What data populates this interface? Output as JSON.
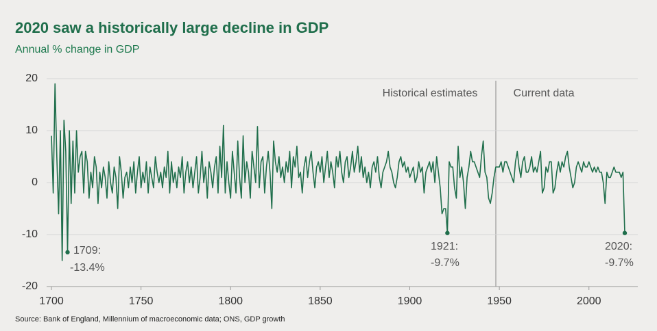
{
  "chart_data": {
    "type": "line",
    "title": "2020 saw a historically large decline in GDP",
    "subtitle": "Annual % change in GDP",
    "source": "Source: Bank of England, Millennium of macroeconomic data; ONS, GDP growth",
    "annotations": [
      "Historical estimates",
      "Current data",
      "1709:",
      "-13.4%",
      "1921:",
      "-9.7%",
      "2020:",
      "-9.7%"
    ],
    "xlim": [
      1700,
      2020
    ],
    "xticks": [
      1700,
      1750,
      1800,
      1850,
      1900,
      1950,
      2000
    ],
    "ylim": [
      -20,
      20
    ],
    "yticks": [
      -20,
      -10,
      0,
      10,
      20
    ],
    "grid": true,
    "x": [
      1700,
      1701,
      1702,
      1703,
      1704,
      1705,
      1706,
      1707,
      1708,
      1709,
      1710,
      1711,
      1712,
      1713,
      1714,
      1715,
      1716,
      1717,
      1718,
      1719,
      1720,
      1721,
      1722,
      1723,
      1724,
      1725,
      1726,
      1727,
      1728,
      1729,
      1730,
      1731,
      1732,
      1733,
      1734,
      1735,
      1736,
      1737,
      1738,
      1739,
      1740,
      1741,
      1742,
      1743,
      1744,
      1745,
      1746,
      1747,
      1748,
      1749,
      1750,
      1751,
      1752,
      1753,
      1754,
      1755,
      1756,
      1757,
      1758,
      1759,
      1760,
      1761,
      1762,
      1763,
      1764,
      1765,
      1766,
      1767,
      1768,
      1769,
      1770,
      1771,
      1772,
      1773,
      1774,
      1775,
      1776,
      1777,
      1778,
      1779,
      1780,
      1781,
      1782,
      1783,
      1784,
      1785,
      1786,
      1787,
      1788,
      1789,
      1790,
      1791,
      1792,
      1793,
      1794,
      1795,
      1796,
      1797,
      1798,
      1799,
      1800,
      1801,
      1802,
      1803,
      1804,
      1805,
      1806,
      1807,
      1808,
      1809,
      1810,
      1811,
      1812,
      1813,
      1814,
      1815,
      1816,
      1817,
      1818,
      1819,
      1820,
      1821,
      1822,
      1823,
      1824,
      1825,
      1826,
      1827,
      1828,
      1829,
      1830,
      1831,
      1832,
      1833,
      1834,
      1835,
      1836,
      1837,
      1838,
      1839,
      1840,
      1841,
      1842,
      1843,
      1844,
      1845,
      1846,
      1847,
      1848,
      1849,
      1850,
      1851,
      1852,
      1853,
      1854,
      1855,
      1856,
      1857,
      1858,
      1859,
      1860,
      1861,
      1862,
      1863,
      1864,
      1865,
      1866,
      1867,
      1868,
      1869,
      1870,
      1871,
      1872,
      1873,
      1874,
      1875,
      1876,
      1877,
      1878,
      1879,
      1880,
      1881,
      1882,
      1883,
      1884,
      1885,
      1886,
      1887,
      1888,
      1889,
      1890,
      1891,
      1892,
      1893,
      1894,
      1895,
      1896,
      1897,
      1898,
      1899,
      1900,
      1901,
      1902,
      1903,
      1904,
      1905,
      1906,
      1907,
      1908,
      1909,
      1910,
      1911,
      1912,
      1913,
      1914,
      1915,
      1916,
      1917,
      1918,
      1919,
      1920,
      1921,
      1922,
      1923,
      1924,
      1925,
      1926,
      1927,
      1928,
      1929,
      1930,
      1931,
      1932,
      1933,
      1934,
      1935,
      1936,
      1937,
      1938,
      1939,
      1940,
      1941,
      1942,
      1943,
      1944,
      1945,
      1946,
      1947,
      1948,
      1949,
      1950,
      1951,
      1952,
      1953,
      1954,
      1955,
      1956,
      1957,
      1958,
      1959,
      1960,
      1961,
      1962,
      1963,
      1964,
      1965,
      1966,
      1967,
      1968,
      1969,
      1970,
      1971,
      1972,
      1973,
      1974,
      1975,
      1976,
      1977,
      1978,
      1979,
      1980,
      1981,
      1982,
      1983,
      1984,
      1985,
      1986,
      1987,
      1988,
      1989,
      1990,
      1991,
      1992,
      1993,
      1994,
      1995,
      1996,
      1997,
      1998,
      1999,
      2000,
      2001,
      2002,
      2003,
      2004,
      2005,
      2006,
      2007,
      2008,
      2009,
      2010,
      2011,
      2012,
      2013,
      2014,
      2015,
      2016,
      2017,
      2018,
      2019,
      2020
    ],
    "series": [
      {
        "name": "Annual % change in GDP",
        "color": "#1f6e4b",
        "values": [
          9,
          -2,
          19,
          5,
          -6,
          10,
          -15,
          12,
          6,
          -13.4,
          10,
          -4,
          8,
          -2,
          10,
          2,
          5,
          6,
          -2,
          6,
          4,
          -3,
          2,
          -1,
          5,
          3,
          -4,
          2,
          -1,
          3,
          1,
          -3,
          4,
          0,
          -2,
          3,
          1,
          -5,
          5,
          2,
          -3,
          1,
          2,
          -1,
          3,
          0,
          4,
          -2,
          2,
          5,
          -1,
          2,
          0,
          4,
          -2,
          3,
          1,
          -1,
          5,
          2,
          0,
          2,
          -1,
          3,
          1,
          6,
          -2,
          4,
          0,
          2,
          -1,
          3,
          1,
          5,
          -2,
          2,
          4,
          0,
          3,
          -1,
          2,
          5,
          -2,
          1,
          6,
          0,
          3,
          -3,
          4,
          2,
          -1,
          3,
          5,
          -2,
          7,
          1,
          11,
          -2,
          4,
          0,
          -3,
          6,
          2,
          -2,
          8,
          1,
          -3,
          9,
          0,
          4,
          2,
          -3,
          6,
          3,
          0,
          10.8,
          -1,
          4,
          5,
          -2,
          3,
          6,
          2,
          -5,
          8,
          4,
          2,
          5,
          1,
          3,
          0,
          4,
          2,
          6,
          -1,
          5,
          3,
          7,
          1,
          2,
          -2,
          3,
          5,
          1,
          4,
          6,
          2,
          -1,
          3,
          4,
          2,
          5,
          0,
          3,
          6,
          1,
          4,
          2,
          -1,
          5,
          3,
          6,
          2,
          0,
          4,
          5,
          1,
          3,
          6,
          2,
          4,
          7,
          2,
          5,
          1,
          3,
          0,
          2,
          -1,
          3,
          4,
          2,
          5,
          1,
          -1,
          2,
          3,
          4,
          6,
          3,
          2,
          0,
          -1,
          1,
          4,
          5,
          3,
          4,
          2,
          3,
          1,
          2,
          3,
          0,
          1,
          4,
          2,
          3,
          -2,
          2,
          3,
          4,
          2,
          4,
          0,
          5,
          2,
          -1,
          -6,
          -5,
          -5,
          -9.7,
          4,
          3,
          3,
          -1,
          -3,
          7,
          1,
          3,
          0,
          -5,
          1,
          3,
          6,
          4,
          4,
          3,
          2,
          1,
          5,
          8,
          2,
          1,
          -3,
          -4,
          -2,
          1,
          3,
          3,
          3,
          4,
          2,
          4,
          4,
          3,
          2,
          1,
          0,
          4,
          6,
          3,
          1,
          4,
          5,
          2,
          2,
          3,
          5,
          2,
          3,
          2,
          4,
          6,
          -2,
          -1,
          3,
          2,
          4,
          4,
          -2,
          -1,
          2,
          4,
          2,
          4,
          3,
          5,
          6,
          3,
          1,
          -1,
          0,
          3,
          4,
          3,
          2,
          4,
          3,
          3,
          4,
          3,
          2,
          3,
          2,
          3,
          2,
          2,
          0,
          -4,
          2,
          1,
          1,
          2,
          3,
          2,
          2,
          2,
          1,
          2,
          -9.7
        ]
      }
    ]
  }
}
